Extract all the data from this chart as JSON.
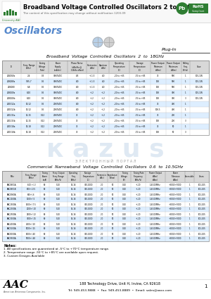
{
  "title": "Broadband Voltage Controlled Oscillators 2 to 18GHz",
  "subtitle": "The content of this specification may change without notification 1203-09",
  "section1_label": "Oscillators",
  "plug_in": "Plug-In",
  "table1_title": "Broadband  Voltage  Controlled  Oscillators  2  to  18GHz",
  "table1_headers": [
    "ID",
    "Freq. Range\n(GHz)",
    "Tuning\nVoltage\n(Vdc)",
    "Power\nSupply\n(mA/dc)",
    "Phase Noise\n(dBc/Hz @\n10kHz offset)",
    "Harmonics\n(dBc)",
    "Spurious\n(dBc)",
    "Operating\nTemperature\n(C)",
    "Storage\nTemperature\n(C)",
    "Power Output\nMinimum\n(dBm)",
    "Power Output\nMaximum\n(dBm)",
    "Pulling\nFreq.\n(MHz)",
    "Case"
  ],
  "table1_rows": [
    [
      "ZD4060a",
      "2-4",
      "0-3",
      "300/5VDC",
      "-85",
      "+/-1.5",
      "-60",
      "-20 to +65",
      "-55 to +85",
      "75",
      "900",
      "1",
      "101-105"
    ],
    [
      "ZD6080a",
      "5.85-7",
      "0-5",
      "300/5VDC",
      "-80",
      "+/-1.5",
      "-60",
      "-20 to +65",
      "-55 to +85",
      "100",
      "900",
      "1",
      "101-105"
    ],
    [
      "ZD6080",
      "6-8",
      "0-5",
      "300/5VDC",
      "-80",
      "+/-1.5",
      "-60",
      "-20 to +65",
      "-55 to +85",
      "100",
      "900",
      "1",
      "101-105"
    ],
    [
      "ZD8100a",
      "8-10",
      "0-5",
      "300/5VDC",
      "-80",
      "+/-2",
      "+/-2",
      "-20 to +65",
      "-55 to +85",
      "100",
      "300",
      "1",
      "101-105"
    ],
    [
      "ZD8100b",
      "8-10",
      "0-5",
      "300/5VDC",
      "-80",
      "+/-2",
      "+/-2",
      "-20 to +65",
      "-55 to +85",
      "100",
      "300",
      "3",
      "101-105"
    ],
    [
      "ZD1012a",
      "10-12",
      "0-5",
      "200/5VDC",
      "-80",
      "+/-2",
      "+/-2",
      "-20 to +65",
      "-55 to +85",
      "75",
      "400",
      "1",
      ""
    ],
    [
      "ZD1012b",
      "10-12",
      "0-5",
      "200/5VDC",
      "-80",
      "+/-2",
      "+/-2",
      "-20 to +65",
      "-55 to +85",
      "100.5",
      "400",
      "1",
      ""
    ],
    [
      "ZD1215a",
      "12-15",
      "0-12",
      "200/5VDC",
      "75",
      "+/-2",
      "+/-2",
      "-20 to +65",
      "-55 to +85",
      "75",
      "200",
      "1",
      ""
    ],
    [
      "ZD1215b",
      "12-15",
      "0-12",
      "200/5VDC",
      "75",
      "+/-2",
      "+/-2",
      "-20 to +65",
      "-55 to +85",
      "100",
      "200",
      "3",
      ""
    ],
    [
      "ZD1518a",
      "15-18",
      "0-12",
      "200/5VDC",
      "75",
      "+/-2",
      "+/-2",
      "-20 to +65",
      "-55 to +85",
      "75",
      "50",
      "1",
      ""
    ],
    [
      "ZD1518b",
      "15-18",
      "0-12",
      "200/5VDC",
      "75",
      "+/-2",
      "+/-2",
      "-20 to +65",
      "-55 to +85",
      "100",
      "50",
      "3",
      ""
    ]
  ],
  "table2_title": "Commercial  Narrowband  Voltage  Controlled  Oscillators  0.6  to  10.5GHz",
  "table2_headers": [
    "MHz",
    "Freq. Range\n(MHz)",
    "Tuning\nPower\n(mA)",
    "Freq. Output\nFreq. Range\n(MHz/V)",
    "Operating\nFreq.\n(MHz)",
    "Storage\nTemperature\n(C)",
    "Harmonics\n(dBc)",
    "Impedance\n(Ohm)",
    "Tuning\nVoltage\n(V)",
    "Tuning Rate\nFrequency\n(MHz/V)",
    "Power Output\n(dBm)\n(dBm)",
    "Power\nTolerance\n(dBm)",
    "Accessible",
    "Cases"
  ],
  "table2_rows": [
    [
      "AAC0601A",
      "600 +/-3",
      "90",
      "5-10",
      "14-16",
      "300-1000",
      "-20",
      "50",
      "0-20",
      "+/-20",
      "1-4/100MHz",
      "+3000/+5000",
      "1",
      "101-105"
    ],
    [
      "AAC0601B",
      "600+/-0.5",
      "90",
      "5-10",
      "14-16",
      "300-1000",
      "-20",
      "50",
      "0-20",
      "+/-20",
      "1-4/100MHz",
      "+3000/+5000",
      "1",
      "101-105"
    ],
    [
      "AAC0900A",
      "900+/-6",
      "90",
      "5-10",
      "14-16",
      "300-1000",
      "-20",
      "50",
      "0-20",
      "+/-20",
      "1-4/100MHz",
      "+3000/+5000",
      "1",
      "101-105"
    ],
    [
      "AAC1100A",
      "1100+/-5",
      "90",
      "5-10",
      "14-16",
      "300-1000",
      "-20",
      "50",
      "0-20",
      "+/-20",
      "1-4/100MHz",
      "+3000/+5000",
      "1",
      "101-105"
    ],
    [
      "AAC1500A",
      "1500+/-7.5",
      "90",
      "5-10",
      "14-16",
      "300-1000",
      "-20",
      "50",
      "0-20",
      "+/-20",
      "1-4/100MHz",
      "+3000/+5000",
      "1",
      "101-105"
    ],
    [
      "AAC2000A",
      "2000+/-10",
      "90",
      "5-10",
      "14-16",
      "300-1000",
      "-20",
      "50",
      "0-20",
      "+/-20",
      "1-4/100MHz",
      "+3000/+5000",
      "1",
      "101-105"
    ],
    [
      "AAC2500A",
      "2500+/-12",
      "90",
      "5-10",
      "14-16",
      "300-1000",
      "-20",
      "50",
      "0-20",
      "+/-20",
      "1-4/100MHz",
      "+3000/+5000",
      "1",
      "101-105"
    ],
    [
      "AAC3000A",
      "3000+/-15",
      "90",
      "5-10",
      "14-16",
      "300-1000",
      "-20",
      "50",
      "0-20",
      "+/-20",
      "1-4/100MHz",
      "+3000/+5000",
      "1",
      "101-105"
    ],
    [
      "AAC4000A",
      "4000+/-20",
      "90",
      "5-10",
      "14-16",
      "300-1000",
      "-20",
      "50",
      "0-20",
      "+/-20",
      "1-4/100MHz",
      "+3000/+5000",
      "1",
      "101-105"
    ],
    [
      "AAC5000A",
      "5000+/-25",
      "90",
      "5-10",
      "14-16",
      "300-1000",
      "-20",
      "50",
      "0-20",
      "+/-20",
      "1-4/100MHz",
      "+3000/+5000",
      "1",
      "101-105"
    ],
    [
      "AAC8000A",
      "8000+/-40",
      "90",
      "5-10",
      "14-16",
      "300-1000",
      "-20",
      "50",
      "0-20",
      "+/-20",
      "1-4/100MHz",
      "+3000/+5000",
      "1",
      "101-105"
    ],
    [
      "AAC9500A",
      "9500+/-48",
      "90",
      "5-10",
      "14-16",
      "300-1000",
      "-20",
      "50",
      "0-20",
      "+/-20",
      "1-4/100MHz",
      "+3000/+5000",
      "1",
      "101-105"
    ]
  ],
  "notes_title": "Notes:",
  "notes": [
    "1. All specifications are guaranteed at -5°C to +70°C temperature range.",
    "2. Temperature range -55°C to +85°C are available upon request.",
    "3. Custom Designs Available"
  ],
  "company_full": "American Antennas Components, Inc.",
  "address": "188 Technology Drive, Unit H, Irvine, CA 92618",
  "contact": "Tel: 949-453-9888  •  Fax: 949-453-8889  •  Email: sales@aacx.com",
  "page_num": "1"
}
